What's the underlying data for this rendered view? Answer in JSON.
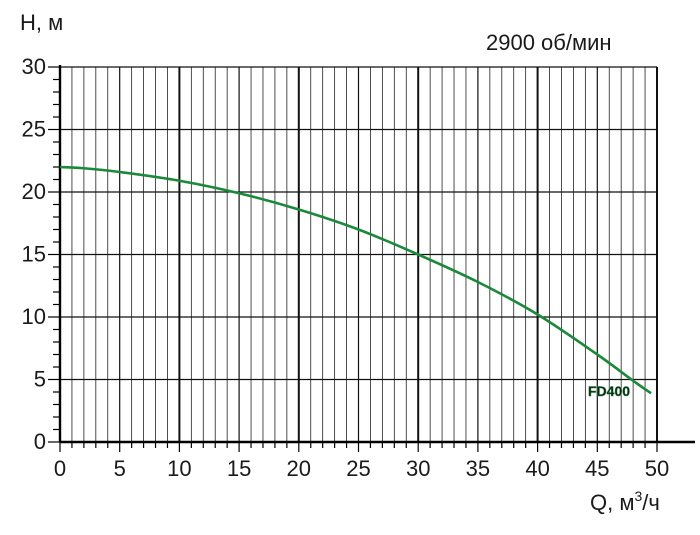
{
  "chart_data": {
    "type": "line",
    "ylabel": "H, м",
    "xlabel_prefix": "Q, м",
    "xlabel_sup": "3",
    "xlabel_suffix": "/ч",
    "annotation": "2900 об/мин",
    "xlim": [
      0,
      50
    ],
    "ylim": [
      0,
      30
    ],
    "x_major_ticks": [
      "0",
      "5",
      "10",
      "15",
      "20",
      "25",
      "30",
      "35",
      "40",
      "45",
      "50"
    ],
    "y_major_ticks": [
      "0",
      "5",
      "10",
      "15",
      "20",
      "25",
      "30"
    ],
    "grid": true,
    "series": [
      {
        "name": "FD400",
        "color": "#1a8a3a",
        "x": [
          0,
          2,
          5,
          10,
          15,
          20,
          25,
          30,
          35,
          40,
          45,
          48,
          49.5
        ],
        "y": [
          22,
          21.9,
          21.6,
          20.9,
          19.9,
          18.6,
          17.0,
          15.0,
          12.8,
          10.2,
          7.0,
          4.9,
          3.9
        ]
      }
    ],
    "series_label_color": "#1a8a3a"
  }
}
